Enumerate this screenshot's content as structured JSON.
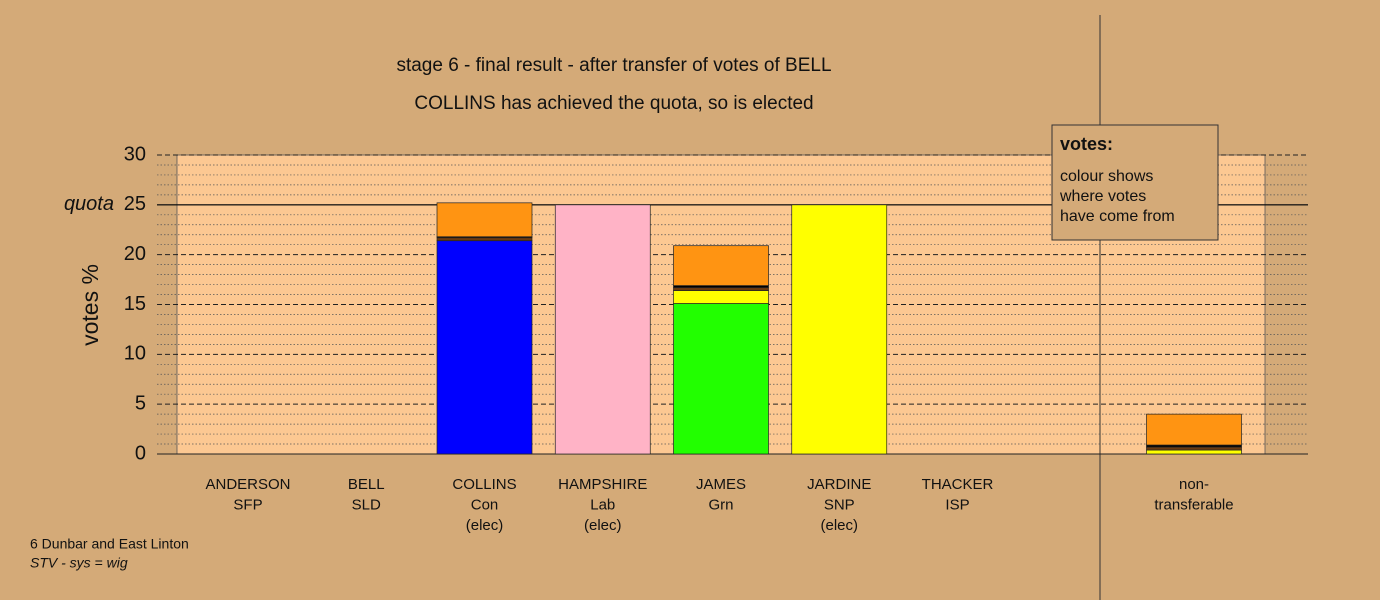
{
  "chart_data": {
    "type": "stacked_bar",
    "title": "stage 6 - final result - after transfer of votes of BELL",
    "subtitle": "COLLINS has achieved the quota, so is elected",
    "y_label": "votes %",
    "categories": [
      [
        "ANDERSON",
        "SFP"
      ],
      [
        "BELL",
        "SLD"
      ],
      [
        "COLLINS",
        "Con",
        "(elec)"
      ],
      [
        "HAMPSHIRE",
        "Lab",
        "(elec)"
      ],
      [
        "JAMES",
        "Grn"
      ],
      [
        "JARDINE",
        "SNP",
        "(elec)"
      ],
      [
        "THACKER",
        "ISP"
      ],
      null,
      [
        "non-",
        "transferable"
      ]
    ],
    "series": [
      {
        "color": "#0000ff",
        "values": [
          0,
          0,
          21.4,
          0,
          0,
          0,
          0,
          null,
          0
        ]
      },
      {
        "color": "#ffb3c6",
        "values": [
          0,
          0,
          0,
          25,
          0,
          0,
          0,
          null,
          0
        ]
      },
      {
        "color": "#22ff00",
        "values": [
          0,
          0,
          0,
          0,
          15.1,
          0,
          0,
          null,
          0
        ]
      },
      {
        "color": "#ffff00",
        "values": [
          0,
          0,
          0,
          0,
          1.3,
          25,
          0,
          null,
          0.4
        ]
      },
      {
        "color": "#6b3a10",
        "values": [
          0,
          0,
          0.3,
          0,
          0.3,
          0,
          0,
          null,
          0.3
        ]
      },
      {
        "color": "#000000",
        "values": [
          0,
          0,
          0.1,
          0,
          0.2,
          0,
          0,
          null,
          0.2
        ]
      },
      {
        "color": "#ff9412",
        "values": [
          0,
          0,
          3.4,
          0,
          4.0,
          0,
          0,
          null,
          3.1
        ]
      }
    ],
    "ylim": [
      0,
      30
    ],
    "yticks": [
      0,
      5,
      10,
      15,
      20,
      25,
      30
    ],
    "minor_yticks": [
      1,
      2,
      3,
      4,
      6,
      7,
      8,
      9,
      11,
      12,
      13,
      14,
      16,
      17,
      18,
      19,
      21,
      22,
      23,
      24,
      26,
      27,
      28,
      29
    ],
    "quota": 25,
    "quota_label": "quota",
    "legend": {
      "title": "votes:",
      "lines": [
        "colour shows",
        "where votes",
        "have come from"
      ]
    },
    "footer": [
      "6 Dunbar and East Linton",
      "STV - sys = wig"
    ]
  }
}
